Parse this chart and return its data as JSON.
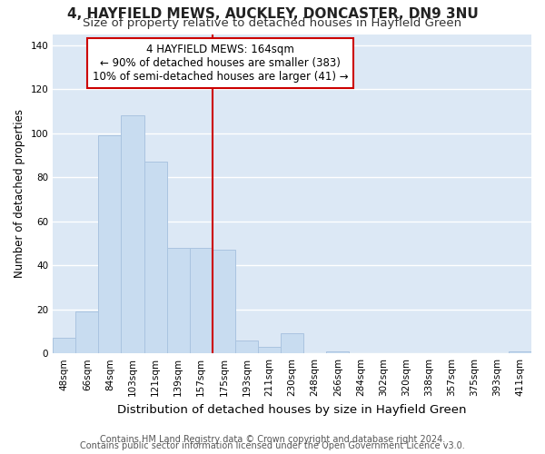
{
  "title": "4, HAYFIELD MEWS, AUCKLEY, DONCASTER, DN9 3NU",
  "subtitle": "Size of property relative to detached houses in Hayfield Green",
  "xlabel": "Distribution of detached houses by size in Hayfield Green",
  "ylabel": "Number of detached properties",
  "bar_color": "#c8dcf0",
  "bar_edgecolor": "#aac4e0",
  "plot_bg_color": "#dce8f5",
  "fig_bg_color": "#ffffff",
  "grid_color": "#ffffff",
  "tick_labels": [
    "48sqm",
    "66sqm",
    "84sqm",
    "103sqm",
    "121sqm",
    "139sqm",
    "157sqm",
    "175sqm",
    "193sqm",
    "211sqm",
    "230sqm",
    "248sqm",
    "266sqm",
    "284sqm",
    "302sqm",
    "320sqm",
    "338sqm",
    "357sqm",
    "375sqm",
    "393sqm",
    "411sqm"
  ],
  "bar_heights": [
    7,
    19,
    99,
    108,
    87,
    48,
    48,
    47,
    6,
    3,
    9,
    0,
    1,
    0,
    0,
    0,
    0,
    0,
    0,
    0,
    1
  ],
  "ylim": [
    0,
    145
  ],
  "yticks": [
    0,
    20,
    40,
    60,
    80,
    100,
    120,
    140
  ],
  "vline_x": 7.0,
  "vline_color": "#cc0000",
  "annotation_title": "4 HAYFIELD MEWS: 164sqm",
  "annotation_line1": "← 90% of detached houses are smaller (383)",
  "annotation_line2": "10% of semi-detached houses are larger (41) →",
  "annotation_box_color": "#ffffff",
  "annotation_box_edgecolor": "#cc0000",
  "footer1": "Contains HM Land Registry data © Crown copyright and database right 2024.",
  "footer2": "Contains public sector information licensed under the Open Government Licence v3.0.",
  "title_fontsize": 11,
  "subtitle_fontsize": 9.5,
  "xlabel_fontsize": 9.5,
  "ylabel_fontsize": 8.5,
  "tick_fontsize": 7.5,
  "footer_fontsize": 7,
  "ann_fontsize": 8.5
}
